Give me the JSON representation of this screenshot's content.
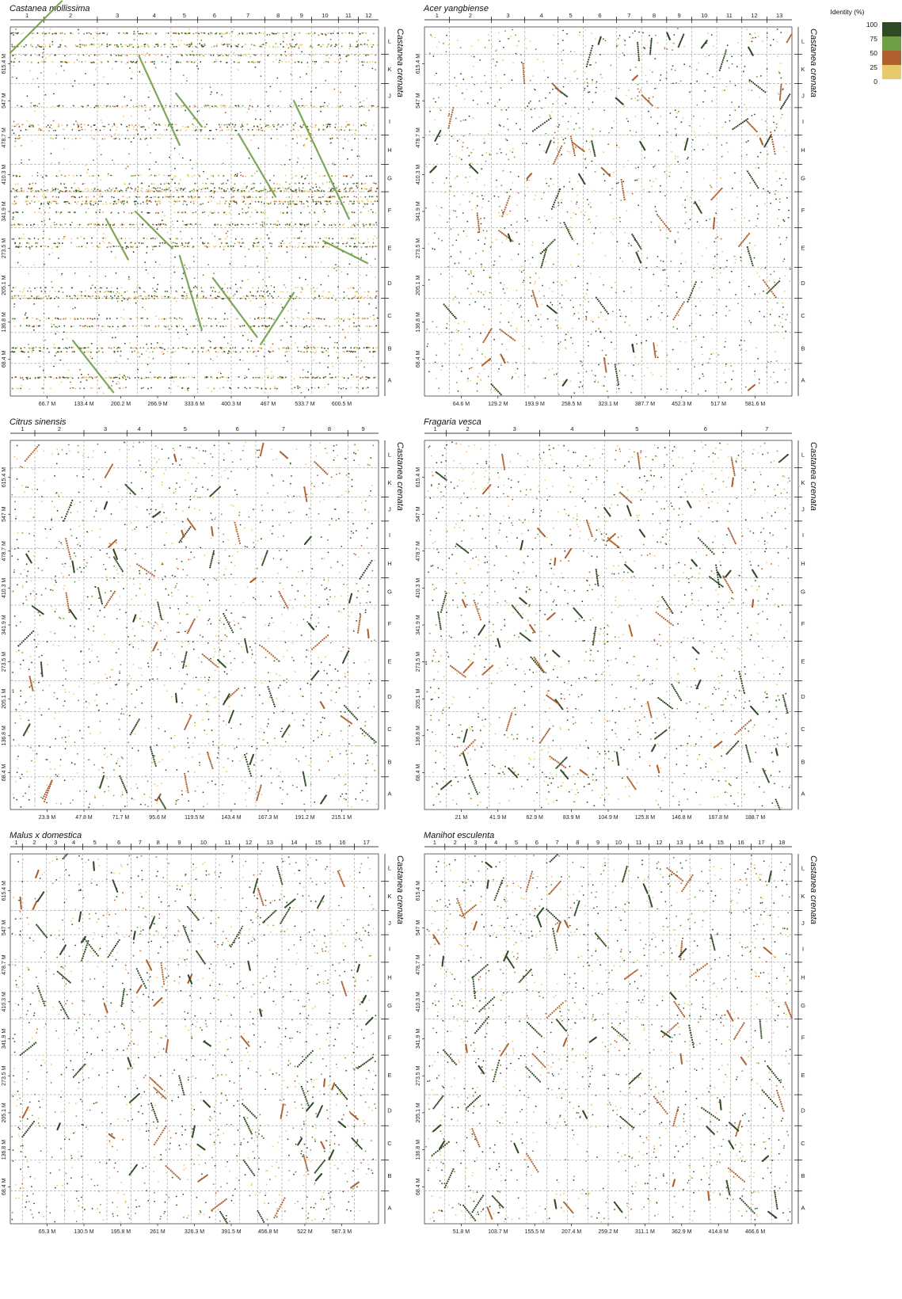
{
  "figure": {
    "y_species": "Castanea crenata",
    "legend": {
      "title": "Identity (%)",
      "ticks": [
        "100",
        "75",
        "50",
        "25",
        "0"
      ],
      "colors": [
        "#2f4a24",
        "#6f9e45",
        "#b0602e",
        "#e7c86a"
      ]
    }
  },
  "chart_data": [
    {
      "type": "scatter",
      "title": "Castanea mollissima",
      "x_chromosomes": [
        "1",
        "2",
        "3",
        "4",
        "5",
        "6",
        "7",
        "8",
        "9",
        "10",
        "11",
        "12"
      ],
      "x_ticks": [
        "66.7 M",
        "133.4 M",
        "200.2 M",
        "266.9 M",
        "333.6 M",
        "400.3 M",
        "467 M",
        "533.7 M",
        "600.5 M"
      ],
      "y_chromosomes": [
        "A",
        "B",
        "C",
        "D",
        "E",
        "F",
        "G",
        "H",
        "I",
        "J",
        "K",
        "L"
      ],
      "y_ticks": [
        "68.4 M",
        "136.8 M",
        "205.1 M",
        "273.5 M",
        "341.9 M",
        "410.3 M",
        "478.7 M",
        "547 M",
        "615.4 M"
      ],
      "ylabel": "Castanea crenata",
      "legend_title": "Identity (%)"
    },
    {
      "type": "scatter",
      "title": "Acer yangbiense",
      "x_chromosomes": [
        "1",
        "2",
        "3",
        "4",
        "5",
        "6",
        "7",
        "8",
        "9",
        "10",
        "11",
        "12",
        "13"
      ],
      "x_ticks": [
        "64.6 M",
        "129.2 M",
        "193.9 M",
        "258.5 M",
        "323.1 M",
        "387.7 M",
        "452.3 M",
        "517 M",
        "581.6 M"
      ],
      "y_chromosomes": [
        "A",
        "B",
        "C",
        "D",
        "E",
        "F",
        "G",
        "H",
        "I",
        "J",
        "K",
        "L"
      ],
      "y_ticks": [
        "68.4 M",
        "136.8 M",
        "205.1 M",
        "273.5 M",
        "341.9 M",
        "410.3 M",
        "478.7 M",
        "547 M",
        "615.4 M"
      ],
      "ylabel": "Castanea crenata"
    },
    {
      "type": "scatter",
      "title": "Citrus sinensis",
      "x_chromosomes": [
        "1",
        "2",
        "3",
        "4",
        "5",
        "6",
        "7",
        "8",
        "9"
      ],
      "x_ticks": [
        "23.9 M",
        "47.8 M",
        "71.7 M",
        "95.6 M",
        "119.5 M",
        "143.4 M",
        "167.3 M",
        "191.2 M",
        "215.1 M"
      ],
      "y_chromosomes": [
        "A",
        "B",
        "C",
        "D",
        "E",
        "F",
        "G",
        "H",
        "I",
        "J",
        "K",
        "L"
      ],
      "y_ticks": [
        "68.4 M",
        "136.8 M",
        "205.1 M",
        "273.5 M",
        "341.9 M",
        "410.3 M",
        "478.7 M",
        "547 M",
        "615.4 M"
      ],
      "ylabel": "Castanea crenata"
    },
    {
      "type": "scatter",
      "title": "Fragaria vesca",
      "x_chromosomes": [
        "1",
        "2",
        "3",
        "4",
        "5",
        "6",
        "7"
      ],
      "x_ticks": [
        "21 M",
        "41.9 M",
        "62.9 M",
        "83.9 M",
        "104.9 M",
        "125.8 M",
        "146.8 M",
        "167.8 M",
        "188.7 M"
      ],
      "y_chromosomes": [
        "A",
        "B",
        "C",
        "D",
        "E",
        "F",
        "G",
        "H",
        "I",
        "J",
        "K",
        "L"
      ],
      "y_ticks": [
        "68.4 M",
        "136.8 M",
        "205.1 M",
        "273.5 M",
        "341.9 M",
        "410.3 M",
        "478.7 M",
        "547 M",
        "615.4 M"
      ],
      "ylabel": "Castanea crenata"
    },
    {
      "type": "scatter",
      "title": "Malus x domestica",
      "x_chromosomes": [
        "1",
        "2",
        "3",
        "4",
        "5",
        "6",
        "7",
        "8",
        "9",
        "10",
        "11",
        "12",
        "13",
        "14",
        "15",
        "16",
        "17"
      ],
      "x_ticks": [
        "65.3 M",
        "130.5 M",
        "195.8 M",
        "261 M",
        "326.3 M",
        "391.5 M",
        "456.8 M",
        "522 M",
        "587.3 M"
      ],
      "y_chromosomes": [
        "A",
        "B",
        "C",
        "D",
        "E",
        "F",
        "G",
        "H",
        "I",
        "J",
        "K",
        "L"
      ],
      "y_ticks": [
        "68.4 M",
        "136.8 M",
        "205.1 M",
        "273.5 M",
        "341.9 M",
        "410.3 M",
        "478.7 M",
        "547 M",
        "615.4 M"
      ],
      "ylabel": "Castanea crenata"
    },
    {
      "type": "scatter",
      "title": "Manihot esculenta",
      "x_chromosomes": [
        "1",
        "2",
        "3",
        "4",
        "5",
        "6",
        "7",
        "8",
        "9",
        "10",
        "11",
        "12",
        "13",
        "14",
        "15",
        "16",
        "17",
        "18"
      ],
      "x_ticks": [
        "51.8 M",
        "103.7 M",
        "155.5 M",
        "207.4 M",
        "259.2 M",
        "311.1 M",
        "362.9 M",
        "414.8 M",
        "466.6 M"
      ],
      "y_chromosomes": [
        "A",
        "B",
        "C",
        "D",
        "E",
        "F",
        "G",
        "H",
        "I",
        "J",
        "K",
        "L"
      ],
      "y_ticks": [
        "68.4 M",
        "136.8 M",
        "205.1 M",
        "273.5 M",
        "341.9 M",
        "410.3 M",
        "478.7 M",
        "547 M",
        "615.4 M"
      ],
      "ylabel": "Castanea crenata"
    }
  ]
}
